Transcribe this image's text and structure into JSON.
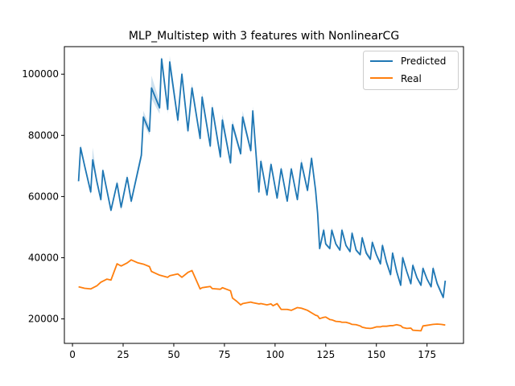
{
  "chart_data": {
    "type": "line",
    "title": "MLP_Multistep with 3 features with NonlinearCG",
    "xlabel": "",
    "ylabel": "",
    "xlim": [
      -4,
      193
    ],
    "ylim": [
      12000,
      109000
    ],
    "xticks": [
      0,
      25,
      50,
      75,
      100,
      125,
      150,
      175
    ],
    "yticks": [
      20000,
      40000,
      60000,
      80000,
      100000
    ],
    "grid": false,
    "legend_position": "top-right",
    "colors": {
      "predicted": "#1f77b4",
      "real": "#ff7f0e",
      "band": "#1f77b4"
    },
    "series": [
      {
        "name": "Predicted",
        "x": [
          3,
          4,
          6,
          9,
          10,
          12,
          14,
          15,
          17,
          19,
          22,
          24,
          27,
          29,
          34,
          35,
          38,
          39,
          43,
          44,
          47,
          48,
          52,
          54,
          57,
          59,
          63,
          64,
          68,
          69,
          73,
          74,
          78,
          79,
          83,
          84,
          88,
          89,
          92,
          93,
          96,
          98,
          101,
          103,
          106,
          108,
          111,
          113,
          116,
          118,
          120,
          121,
          122,
          124,
          125,
          127,
          128,
          130,
          132,
          133,
          135,
          137,
          138,
          140,
          142,
          143,
          145,
          147,
          148,
          150,
          152,
          153,
          155,
          157,
          158,
          160,
          162,
          163,
          165,
          167,
          168,
          170,
          172,
          173,
          175,
          177,
          178,
          180,
          182,
          183,
          184
        ],
        "y": [
          65000,
          76000,
          70000,
          61500,
          72000,
          65000,
          59000,
          68500,
          62000,
          55500,
          64300,
          56500,
          66200,
          58500,
          73500,
          86000,
          81300,
          95500,
          89000,
          105000,
          88500,
          104000,
          85000,
          100000,
          81500,
          95500,
          79000,
          92500,
          76500,
          89000,
          73000,
          85000,
          71000,
          83500,
          74000,
          86000,
          75000,
          88000,
          61500,
          71500,
          60500,
          70500,
          59500,
          69000,
          58500,
          69000,
          59000,
          71000,
          62000,
          72500,
          62000,
          54500,
          43000,
          49000,
          44500,
          43000,
          49000,
          44500,
          42500,
          49000,
          44000,
          42000,
          48000,
          42500,
          41000,
          46500,
          41500,
          39500,
          45000,
          41000,
          38000,
          44000,
          38500,
          34500,
          41500,
          35500,
          31000,
          40000,
          35500,
          31500,
          37500,
          33500,
          31000,
          36500,
          33000,
          30500,
          36500,
          31500,
          28500,
          27000,
          32500
        ],
        "y_lower": [
          64500,
          75000,
          69000,
          60500,
          70500,
          64000,
          58000,
          67500,
          61000,
          55000,
          63300,
          55500,
          65200,
          57500,
          72000,
          84000,
          80000,
          92000,
          87000,
          102000,
          87000,
          101000,
          83500,
          97500,
          80500,
          93500,
          78000,
          90500,
          75500,
          87000,
          72000,
          83000,
          70500,
          82000,
          73000,
          84500,
          74000,
          86500,
          61000,
          70500,
          60000,
          69500,
          59000,
          68000,
          58000,
          68000,
          58500,
          69500,
          61500,
          71500,
          61500,
          53500,
          42500,
          48000,
          44000,
          42500,
          48000,
          44000,
          42000,
          48000,
          43500,
          41500,
          47000,
          42000,
          40500,
          45500,
          41000,
          39000,
          44000,
          40500,
          37500,
          43000,
          38000,
          33500,
          40500,
          35000,
          30500,
          39000,
          35000,
          31000,
          36500,
          33000,
          30500,
          35500,
          32500,
          30000,
          35500,
          31000,
          28000,
          26500,
          32000
        ],
        "y_upper": [
          65500,
          77000,
          71000,
          62500,
          76000,
          66000,
          60000,
          69500,
          63000,
          56500,
          65300,
          57500,
          67200,
          59500,
          75000,
          88000,
          83000,
          99500,
          91000,
          106000,
          90000,
          106000,
          86500,
          101500,
          82500,
          97000,
          80000,
          94000,
          77500,
          90500,
          74000,
          87000,
          72000,
          85000,
          75000,
          88000,
          76000,
          89500,
          62500,
          72500,
          61500,
          71500,
          60500,
          70000,
          59500,
          70000,
          60000,
          72500,
          63000,
          73500,
          63000,
          55500,
          43500,
          50000,
          45000,
          43500,
          50000,
          45000,
          43000,
          50000,
          44500,
          42500,
          49000,
          43000,
          41500,
          47500,
          42500,
          40500,
          46000,
          41500,
          39000,
          45000,
          39500,
          35500,
          42500,
          36500,
          31500,
          41000,
          36000,
          32000,
          38500,
          34000,
          31500,
          37500,
          33500,
          31000,
          37500,
          32500,
          29500,
          27500,
          33000
        ]
      },
      {
        "name": "Real",
        "x": [
          3,
          6,
          9,
          12,
          14,
          17,
          19,
          22,
          24,
          27,
          29,
          32,
          35,
          38,
          39,
          43,
          47,
          48,
          52,
          54,
          57,
          59,
          63,
          64,
          68,
          69,
          73,
          74,
          78,
          79,
          81,
          83,
          84,
          88,
          89,
          92,
          93,
          96,
          98,
          99,
          101,
          103,
          106,
          108,
          111,
          113,
          116,
          118,
          120,
          121,
          122,
          124,
          125,
          127,
          128,
          130,
          132,
          133,
          135,
          137,
          138,
          140,
          142,
          143,
          145,
          147,
          148,
          150,
          152,
          153,
          155,
          157,
          158,
          160,
          162,
          163,
          165,
          167,
          168,
          170,
          172,
          173,
          175,
          177,
          178,
          180,
          182,
          184
        ],
        "y": [
          30500,
          30000,
          29800,
          30800,
          32000,
          33000,
          32700,
          38000,
          37300,
          38300,
          39300,
          38400,
          37900,
          37100,
          35500,
          34300,
          33600,
          34100,
          34700,
          33600,
          35200,
          35800,
          29800,
          30200,
          30600,
          29900,
          29700,
          30200,
          29200,
          26800,
          25800,
          24600,
          25000,
          25500,
          25300,
          24900,
          25000,
          24600,
          24900,
          24300,
          25000,
          23100,
          23100,
          22800,
          23700,
          23500,
          22800,
          22000,
          21200,
          21000,
          20100,
          20500,
          20600,
          19800,
          19700,
          19200,
          19100,
          18900,
          18900,
          18500,
          18200,
          18100,
          17700,
          17300,
          17000,
          16900,
          17000,
          17400,
          17400,
          17600,
          17600,
          17800,
          17800,
          18100,
          17800,
          17200,
          16900,
          17000,
          16300,
          16200,
          16100,
          17700,
          17900,
          18100,
          18200,
          18300,
          18200,
          18000
        ]
      }
    ]
  }
}
